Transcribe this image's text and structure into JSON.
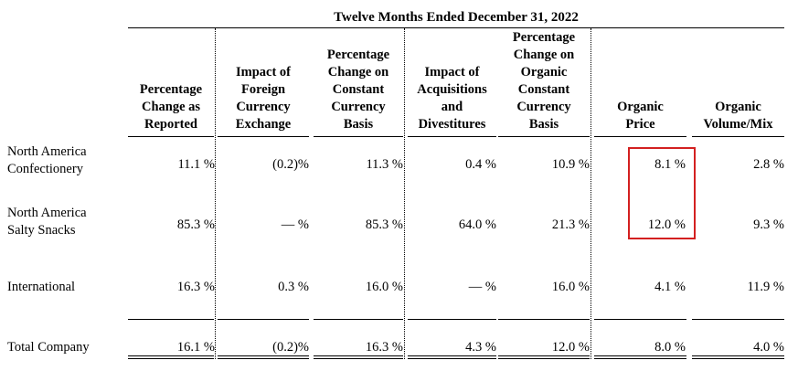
{
  "table": {
    "title": "Twelve Months Ended December 31, 2022",
    "columns": [
      "Percentage Change as Reported",
      "Impact of Foreign Currency Exchange",
      "Percentage Change on Constant Currency Basis",
      "Impact of Acquisitions and Divestitures",
      "Percentage Change on Organic Constant Currency Basis",
      "Organic Price",
      "Organic Volume/Mix"
    ],
    "header_lines": [
      [
        "Percentage",
        "Change as",
        "Reported"
      ],
      [
        "Impact of",
        "Foreign",
        "Currency",
        "Exchange"
      ],
      [
        "Percentage",
        "Change on",
        "Constant",
        "Currency",
        "Basis"
      ],
      [
        "Impact of",
        "Acquisitions",
        "and",
        "Divestitures"
      ],
      [
        "Percentage",
        "Change on",
        "Organic",
        "Constant",
        "Currency",
        "Basis"
      ],
      [
        "Organic",
        "Price"
      ],
      [
        "Organic",
        "Volume/Mix"
      ]
    ],
    "rows": [
      {
        "label_lines": [
          "North America",
          "Confectionery"
        ],
        "values": [
          "11.1 %",
          "(0.2)%",
          "11.3 %",
          "0.4 %",
          "10.9 %",
          "8.1 %",
          "2.8 %"
        ]
      },
      {
        "label_lines": [
          "North America",
          "Salty Snacks"
        ],
        "values": [
          "85.3 %",
          "— %",
          "85.3 %",
          "64.0 %",
          "21.3 %",
          "12.0 %",
          "9.3 %"
        ]
      },
      {
        "label_lines": [
          "International"
        ],
        "values": [
          "16.3 %",
          "0.3 %",
          "16.0 %",
          "— %",
          "16.0 %",
          "4.1 %",
          "11.9 %"
        ]
      },
      {
        "label_lines": [
          "Total Company"
        ],
        "values": [
          "16.1 %",
          "(0.2)%",
          "16.3 %",
          "4.3 %",
          "12.0 %",
          "8.0 %",
          "4.0 %"
        ]
      }
    ],
    "highlight_color": "#d32020"
  }
}
